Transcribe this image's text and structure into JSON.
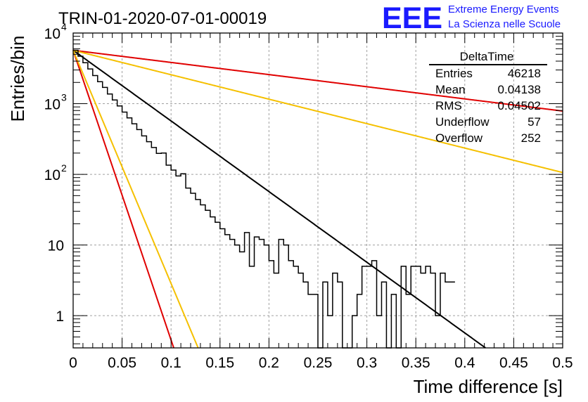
{
  "header": {
    "title": "TRIN-01-2020-07-01-00019",
    "logo_text": "EEE",
    "logo_line1": "Extreme Energy Events",
    "logo_line2": "La Scienza nelle Scuole",
    "logo_color": "#1a1aff"
  },
  "stats_box": {
    "name": "DeltaTime",
    "rows": [
      {
        "label": "Entries",
        "value": "46218"
      },
      {
        "label": "Mean",
        "value": "0.04138"
      },
      {
        "label": "RMS",
        "value": "0.04502"
      },
      {
        "label": "Underflow",
        "value": "57"
      },
      {
        "label": "Overflow",
        "value": "252"
      }
    ]
  },
  "chart_data": {
    "type": "line",
    "title": "TRIN-01-2020-07-01-00019",
    "xlabel": "Time difference [s]",
    "ylabel": "Entries/bin",
    "xlim": [
      0,
      0.5
    ],
    "ylim": [
      0.35,
      10000
    ],
    "yscale": "log",
    "grid": true,
    "x_ticks": [
      "0",
      "0.05",
      "0.1",
      "0.15",
      "0.2",
      "0.25",
      "0.3",
      "0.35",
      "0.4",
      "0.45",
      "0.5"
    ],
    "y_ticks": [
      {
        "value": 1,
        "label": "1"
      },
      {
        "value": 10,
        "label": "10"
      },
      {
        "value": 100,
        "label": "10",
        "exp": "2"
      },
      {
        "value": 1000,
        "label": "10",
        "exp": "3"
      },
      {
        "value": 10000,
        "label": "10",
        "exp": "4"
      }
    ],
    "histogram": {
      "color": "#000000",
      "bin_width": 0.005,
      "values": [
        5700,
        4700,
        3800,
        3100,
        2500,
        2050,
        1700,
        1370,
        1130,
        930,
        760,
        630,
        520,
        430,
        350,
        290,
        240,
        198,
        200,
        135,
        115,
        95,
        102,
        64,
        54,
        44,
        37,
        31,
        25,
        21,
        17,
        14,
        12,
        10,
        8,
        15,
        5,
        13,
        12,
        10,
        6,
        4,
        12,
        10,
        6,
        5,
        4,
        3,
        2,
        2,
        0.3,
        3,
        1,
        4,
        3,
        0,
        0,
        1,
        2,
        5,
        5,
        6,
        1,
        3,
        0,
        2,
        0.3,
        5,
        2,
        5,
        5,
        4,
        5,
        4,
        1,
        4,
        3,
        3
      ]
    },
    "curves": [
      {
        "color": "#000000",
        "y0": 5700,
        "slope": -10.0
      },
      {
        "color": "#e00000",
        "y0": 5700,
        "slope": -1.72
      },
      {
        "color": "#f5c000",
        "y0": 5700,
        "slope": -3.46
      },
      {
        "color": "#e00000",
        "y0": 5700,
        "slope": -41.0
      },
      {
        "color": "#f5c000",
        "y0": 5700,
        "slope": -33.0
      }
    ]
  }
}
